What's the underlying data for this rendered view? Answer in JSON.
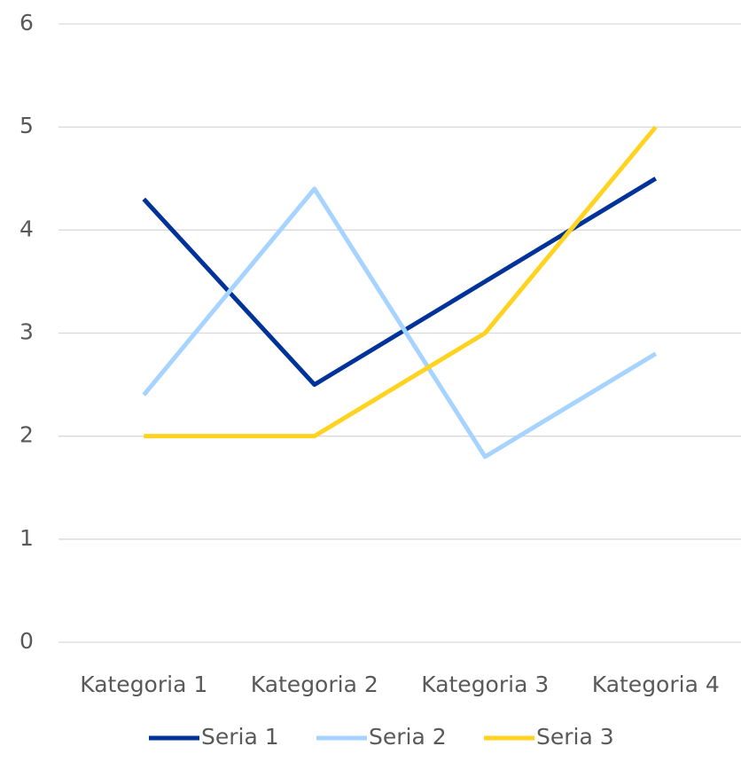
{
  "chart_data": {
    "type": "line",
    "categories": [
      "Kategoria 1",
      "Kategoria 2",
      "Kategoria 3",
      "Kategoria 4"
    ],
    "series": [
      {
        "name": "Seria 1",
        "color": "#003399",
        "values": [
          4.3,
          2.5,
          3.5,
          4.5
        ]
      },
      {
        "name": "Seria 2",
        "color": "#a6d3ff",
        "values": [
          2.4,
          4.4,
          1.8,
          2.8
        ]
      },
      {
        "name": "Seria 3",
        "color": "#ffd320",
        "values": [
          2,
          2,
          3,
          5
        ]
      }
    ],
    "ylim": [
      0,
      6
    ],
    "yticks": [
      0,
      1,
      2,
      3,
      4,
      5,
      6
    ],
    "grid": true,
    "legend": "bottom"
  }
}
